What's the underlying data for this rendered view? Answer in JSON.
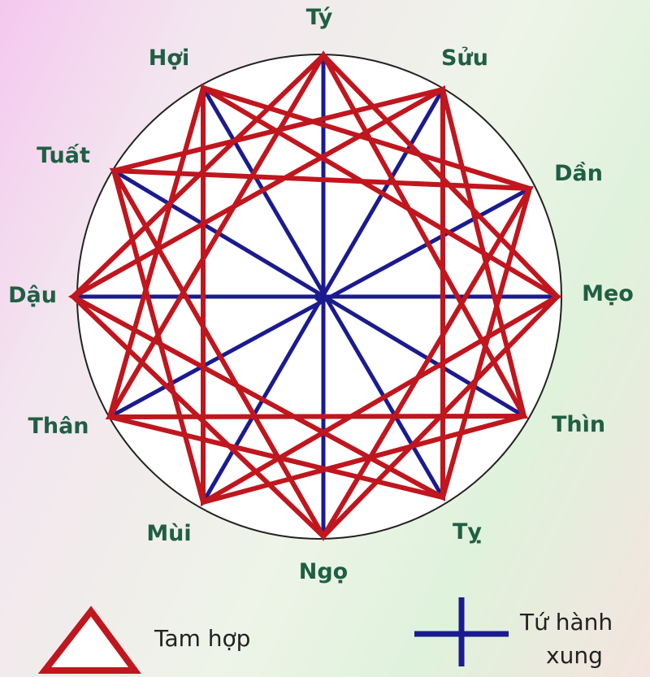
{
  "branches": [
    "Tý",
    "Sửu",
    "Dần",
    "Mẹo",
    "Thìn",
    "Tỵ",
    "Ngọ",
    "Mùi",
    "Thân",
    "Dậu",
    "Tuất",
    "Hợi"
  ],
  "legend": {
    "tam_hop": "Tam hợp",
    "tu_hanh_xung_line1": "Tứ hành",
    "tu_hanh_xung_line2": "xung"
  },
  "colors": {
    "tam_hop": "#c0161e",
    "tu_hanh_xung": "#1b1b8f",
    "label": "#1f5f43"
  }
}
